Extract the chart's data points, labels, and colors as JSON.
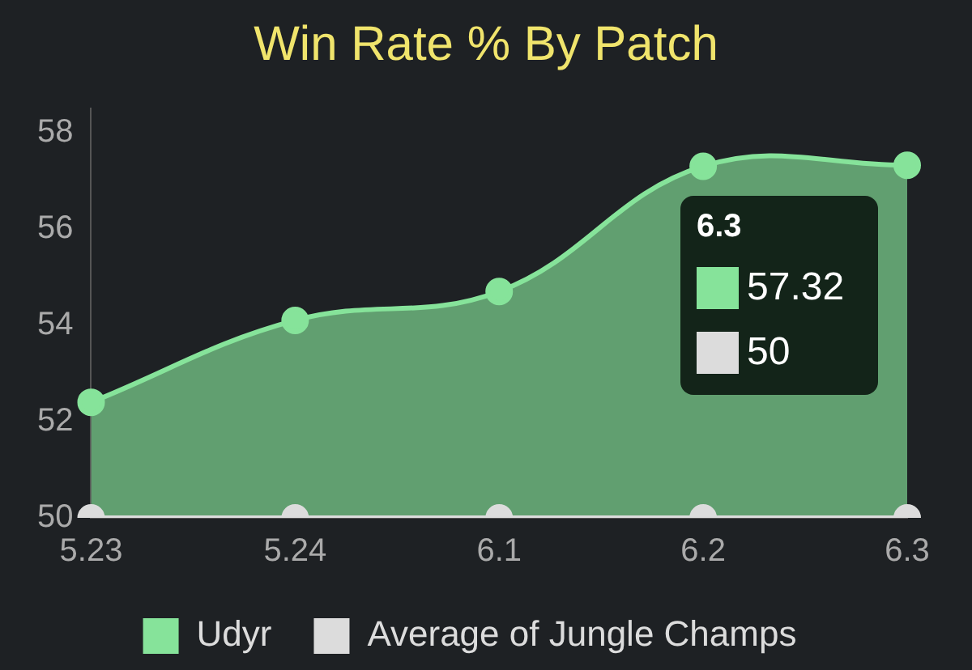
{
  "chart_data": {
    "type": "area",
    "title": "Win Rate % By Patch",
    "categories": [
      "5.23",
      "5.24",
      "6.1",
      "6.2",
      "6.3"
    ],
    "series": [
      {
        "name": "Udyr",
        "color": "#86e39a",
        "values": [
          52.4,
          54.1,
          54.7,
          57.3,
          57.32
        ]
      },
      {
        "name": "Average of Jungle Champs",
        "type": "line",
        "color": "#dcdcdc",
        "values": [
          50,
          50,
          50,
          50,
          50
        ]
      }
    ],
    "annotations": [
      "6.3",
      "57.32",
      "50"
    ],
    "ylim": [
      50,
      58.5
    ],
    "yticks": [
      50,
      52,
      54,
      56,
      58
    ],
    "grid": false,
    "legend": "bottom",
    "marker": "circle",
    "line_style": "solid"
  }
}
